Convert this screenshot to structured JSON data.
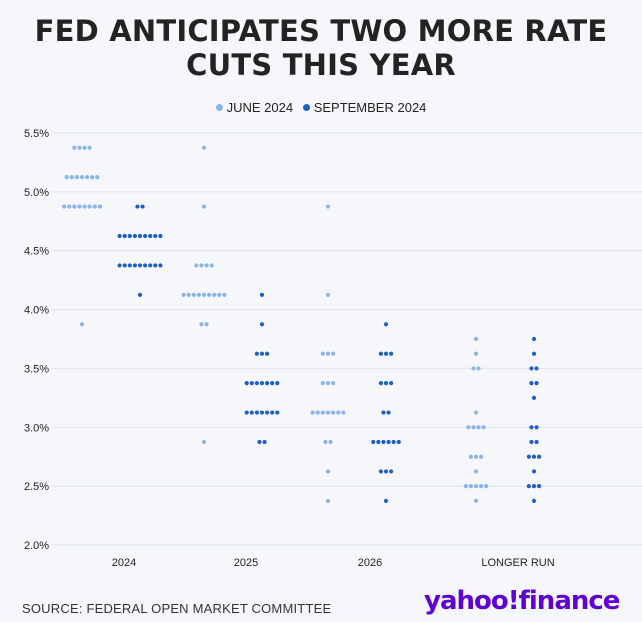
{
  "title_lines": [
    "FED ANTICIPATES TWO MORE RATE",
    "CUTS THIS YEAR"
  ],
  "legend": [
    {
      "label": "JUNE 2024",
      "color": "#8ab4ea"
    },
    {
      "label": "SEPTEMBER 2024",
      "color": "#1f5fc4"
    }
  ],
  "source": "SOURCE: FEDERAL OPEN MARKET COMMITTEE",
  "brand": "yahoo!finance",
  "chart_data": {
    "type": "scatter",
    "subtype": "dot-plot",
    "categories": [
      "2024",
      "2025",
      "2026",
      "LONGER RUN"
    ],
    "y_ticks": [
      "2.0%",
      "2.5%",
      "3.0%",
      "3.5%",
      "4.0%",
      "4.5%",
      "5.0%",
      "5.5%"
    ],
    "ylim": [
      2.0,
      5.5
    ],
    "grid": true,
    "legend_position": "top-center",
    "series": [
      {
        "name": "JUNE 2024",
        "color": "#8ab4ea",
        "points": {
          "2024": [
            [
              5.375,
              4
            ],
            [
              5.125,
              7
            ],
            [
              4.875,
              8
            ],
            [
              3.875,
              1
            ]
          ],
          "2025": [
            [
              5.375,
              1
            ],
            [
              4.875,
              1
            ],
            [
              4.375,
              4
            ],
            [
              4.125,
              9
            ],
            [
              3.875,
              2
            ],
            [
              2.875,
              1
            ]
          ],
          "2026": [
            [
              4.875,
              1
            ],
            [
              4.125,
              1
            ],
            [
              3.625,
              3
            ],
            [
              3.375,
              3
            ],
            [
              3.125,
              7
            ],
            [
              2.875,
              2
            ],
            [
              2.625,
              1
            ],
            [
              2.375,
              1
            ]
          ],
          "LONGER RUN": [
            [
              3.75,
              1
            ],
            [
              3.625,
              1
            ],
            [
              3.5,
              2
            ],
            [
              3.125,
              1
            ],
            [
              3.0,
              4
            ],
            [
              2.75,
              3
            ],
            [
              2.625,
              1
            ],
            [
              2.5,
              5
            ],
            [
              2.375,
              1
            ]
          ]
        }
      },
      {
        "name": "SEPTEMBER 2024",
        "color": "#1f5fc4",
        "points": {
          "2024": [
            [
              4.875,
              2
            ],
            [
              4.625,
              9
            ],
            [
              4.375,
              9
            ],
            [
              4.125,
              1
            ]
          ],
          "2025": [
            [
              4.125,
              1
            ],
            [
              3.875,
              1
            ],
            [
              3.625,
              3
            ],
            [
              3.375,
              7
            ],
            [
              3.125,
              7
            ],
            [
              2.875,
              2
            ]
          ],
          "2026": [
            [
              3.875,
              1
            ],
            [
              3.625,
              3
            ],
            [
              3.375,
              3
            ],
            [
              3.125,
              2
            ],
            [
              2.875,
              6
            ],
            [
              2.625,
              3
            ],
            [
              2.375,
              1
            ]
          ],
          "LONGER RUN": [
            [
              3.75,
              1
            ],
            [
              3.625,
              1
            ],
            [
              3.5,
              2
            ],
            [
              3.375,
              2
            ],
            [
              3.25,
              1
            ],
            [
              3.0,
              2
            ],
            [
              2.875,
              2
            ],
            [
              2.75,
              3
            ],
            [
              2.625,
              1
            ],
            [
              2.5,
              3
            ],
            [
              2.375,
              1
            ]
          ]
        }
      }
    ]
  }
}
